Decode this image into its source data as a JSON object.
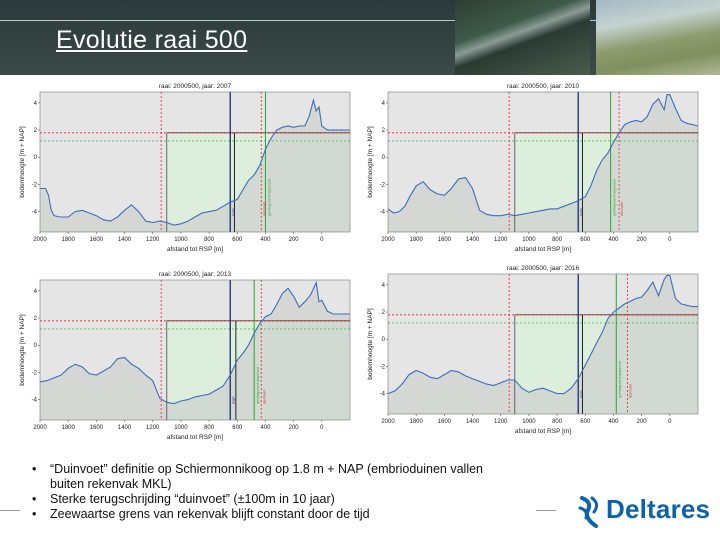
{
  "slide": {
    "title": "Evolutie raai 500",
    "bullets": [
      "“Duinvoet” definitie op Schiermonnikoog op 1.8 m + NAP (embrioduinen vallen buiten rekenvak MKL)",
      "Sterke terugschrijding “duinvoet” (±100m in 10 jaar)",
      "Zeewaartse grens van rekenvak blijft constant door de tijd"
    ],
    "logo_text": "Deltares"
  },
  "colors": {
    "profile": "#3a6fb8",
    "nap_line": "#e0232a",
    "dune_foot_line": "#7b2b2b",
    "green_band": "#2aa535",
    "navy": "#1b2a7a",
    "panel_gray": "#e5e5e5",
    "zone_green": "#dbeedb",
    "logo_blue": "#0c63a9"
  },
  "chart_data": [
    {
      "type": "area",
      "title": "raai: 2000500, jaar: 2007",
      "xlabel": "afstand tot RSP [m]",
      "ylabel": "bodemhoogte [m + NAP]",
      "xlim": [
        2000,
        -200
      ],
      "ylim": [
        -5.5,
        4.8
      ],
      "x_ticks": [
        2000,
        1800,
        1600,
        1400,
        1200,
        1000,
        800,
        600,
        400,
        200,
        0
      ],
      "y_ticks": [
        -4,
        -2,
        0,
        2,
        4
      ],
      "hlines": [
        1.8,
        1.2,
        0.9
      ],
      "rekenvak": [
        1100,
        -200
      ],
      "vlines": {
        "red": [
          1140,
          430
        ],
        "navy": [
          650
        ],
        "dark": [
          620
        ],
        "green": [
          400
        ]
      },
      "vline_labels": [
        "RSP",
        "geïntegreerd begrensd",
        "duinvoet"
      ],
      "profile": {
        "x": [
          2000,
          1960,
          1940,
          1920,
          1900,
          1860,
          1800,
          1750,
          1700,
          1650,
          1600,
          1550,
          1500,
          1450,
          1400,
          1350,
          1300,
          1250,
          1200,
          1150,
          1100,
          1050,
          1000,
          950,
          900,
          850,
          800,
          750,
          700,
          650,
          600,
          560,
          520,
          480,
          440,
          400,
          360,
          320,
          280,
          240,
          200,
          160,
          120,
          90,
          60,
          40,
          20,
          0,
          -40,
          -80,
          -120,
          -160,
          -200
        ],
        "y": [
          -2.3,
          -2.3,
          -2.8,
          -3.9,
          -4.3,
          -4.4,
          -4.4,
          -4.0,
          -3.9,
          -4.1,
          -4.3,
          -4.6,
          -4.7,
          -4.4,
          -3.9,
          -3.5,
          -4.0,
          -4.7,
          -4.8,
          -4.7,
          -4.8,
          -5.0,
          -4.9,
          -4.7,
          -4.4,
          -4.1,
          -4.0,
          -3.9,
          -3.6,
          -3.3,
          -3.1,
          -2.4,
          -1.7,
          -1.3,
          -0.6,
          0.6,
          1.4,
          2.0,
          2.2,
          2.3,
          2.2,
          2.3,
          2.3,
          3.0,
          4.2,
          3.4,
          3.7,
          2.3,
          2.0,
          2.0,
          2.0,
          2.0,
          2.0
        ]
      }
    },
    {
      "type": "area",
      "title": "raai: 2000500, jaar: 2010",
      "xlabel": "afstand tot RSP [m]",
      "ylabel": "bodemhoogte [m + NAP]",
      "xlim": [
        2000,
        -200
      ],
      "ylim": [
        -5.5,
        4.8
      ],
      "x_ticks": [
        2000,
        1800,
        1600,
        1400,
        1200,
        1000,
        800,
        600,
        400,
        200,
        0
      ],
      "y_ticks": [
        -4,
        -2,
        0,
        2,
        4
      ],
      "hlines": [
        1.8,
        1.2,
        0.9
      ],
      "rekenvak": [
        1100,
        -200
      ],
      "vlines": {
        "red": [
          1140,
          360
        ],
        "navy": [
          650
        ],
        "dark": [
          620
        ],
        "green": [
          420
        ]
      },
      "vline_labels": [
        "RSP",
        "geïntegreerd begrensd",
        "duinvoet"
      ],
      "profile": {
        "x": [
          2000,
          1960,
          1920,
          1880,
          1840,
          1800,
          1750,
          1700,
          1650,
          1600,
          1550,
          1500,
          1450,
          1400,
          1350,
          1300,
          1250,
          1200,
          1150,
          1100,
          1050,
          1000,
          950,
          900,
          850,
          800,
          750,
          700,
          650,
          600,
          560,
          520,
          480,
          440,
          400,
          360,
          320,
          280,
          240,
          200,
          160,
          120,
          80,
          40,
          20,
          0,
          -40,
          -80,
          -120,
          -160,
          -200
        ],
        "y": [
          -3.8,
          -4.1,
          -4.0,
          -3.6,
          -2.8,
          -2.1,
          -1.8,
          -2.4,
          -2.7,
          -2.8,
          -2.3,
          -1.6,
          -1.5,
          -2.3,
          -3.9,
          -4.2,
          -4.3,
          -4.3,
          -4.2,
          -4.3,
          -4.2,
          -4.1,
          -4.0,
          -3.9,
          -3.8,
          -3.8,
          -3.6,
          -3.4,
          -3.2,
          -2.9,
          -2.1,
          -1.0,
          -0.2,
          0.3,
          1.1,
          1.8,
          2.4,
          2.6,
          2.7,
          2.6,
          3.0,
          3.9,
          4.3,
          3.5,
          4.6,
          4.6,
          3.6,
          2.7,
          2.5,
          2.4,
          2.3
        ]
      }
    },
    {
      "type": "area",
      "title": "raai: 2000500, jaar: 2013",
      "xlabel": "afstand tot RSP [m]",
      "ylabel": "bodemhoogte [m + NAP]",
      "xlim": [
        2000,
        -200
      ],
      "ylim": [
        -5.5,
        4.8
      ],
      "x_ticks": [
        2000,
        1800,
        1600,
        1400,
        1200,
        1000,
        800,
        600,
        400,
        200,
        0
      ],
      "y_ticks": [
        -4,
        -2,
        0,
        2,
        4
      ],
      "hlines": [
        1.8,
        1.2,
        0.9
      ],
      "rekenvak": [
        1100,
        -200
      ],
      "vlines": {
        "red": [
          1140,
          430
        ],
        "navy": [
          650
        ],
        "dark": [
          610
        ],
        "green": [
          480
        ]
      },
      "vline_labels": [
        "RSP",
        "geïntegreerd begrensd",
        "duinvoet"
      ],
      "profile": {
        "x": [
          2000,
          1950,
          1900,
          1850,
          1800,
          1750,
          1700,
          1650,
          1600,
          1550,
          1500,
          1450,
          1400,
          1350,
          1300,
          1250,
          1200,
          1150,
          1100,
          1050,
          1000,
          950,
          900,
          850,
          800,
          750,
          700,
          650,
          600,
          560,
          520,
          480,
          440,
          400,
          360,
          320,
          280,
          240,
          200,
          160,
          120,
          80,
          40,
          20,
          0,
          -40,
          -80,
          -120,
          -160,
          -200
        ],
        "y": [
          -2.7,
          -2.6,
          -2.4,
          -2.2,
          -1.7,
          -1.4,
          -1.6,
          -2.1,
          -2.2,
          -1.9,
          -1.6,
          -1.0,
          -0.9,
          -1.4,
          -1.7,
          -2.2,
          -2.6,
          -3.9,
          -4.2,
          -4.3,
          -4.1,
          -4.0,
          -3.8,
          -3.7,
          -3.6,
          -3.3,
          -3.0,
          -2.2,
          -1.1,
          -0.6,
          0.0,
          0.9,
          1.6,
          2.1,
          2.3,
          3.0,
          3.8,
          4.2,
          3.6,
          2.8,
          3.2,
          3.7,
          4.6,
          3.2,
          3.3,
          2.5,
          2.3,
          2.3,
          2.3,
          2.3
        ]
      }
    },
    {
      "type": "area",
      "title": "raai: 2000500, jaar: 2016",
      "xlabel": "afstand tot RSP [m]",
      "ylabel": "bodemhoogte [m + NAP]",
      "xlim": [
        2000,
        -200
      ],
      "ylim": [
        -5.5,
        4.8
      ],
      "x_ticks": [
        2000,
        1800,
        1600,
        1400,
        1200,
        1000,
        800,
        600,
        400,
        200,
        0
      ],
      "y_ticks": [
        -4,
        -2,
        0,
        2,
        4
      ],
      "hlines": [
        1.8,
        1.2,
        0.9
      ],
      "rekenvak": [
        1100,
        -200
      ],
      "vlines": {
        "red": [
          1140,
          300
        ],
        "navy": [
          650
        ],
        "dark": [
          620
        ],
        "green": [
          380
        ]
      },
      "vline_labels": [
        "RSP",
        "geïntegreerd begrensd",
        "duinvoet"
      ],
      "profile": {
        "x": [
          2000,
          1950,
          1900,
          1850,
          1800,
          1750,
          1700,
          1650,
          1600,
          1550,
          1500,
          1450,
          1400,
          1350,
          1300,
          1250,
          1200,
          1150,
          1100,
          1050,
          1000,
          950,
          900,
          850,
          800,
          750,
          700,
          650,
          600,
          560,
          520,
          480,
          440,
          400,
          360,
          320,
          280,
          240,
          200,
          160,
          120,
          80,
          40,
          20,
          0,
          -40,
          -80,
          -120,
          -160,
          -200
        ],
        "y": [
          -4.0,
          -3.8,
          -3.3,
          -2.6,
          -2.3,
          -2.5,
          -2.8,
          -2.9,
          -2.6,
          -2.3,
          -2.4,
          -2.7,
          -2.9,
          -3.1,
          -3.3,
          -3.4,
          -3.2,
          -3.0,
          -3.0,
          -3.6,
          -3.9,
          -3.7,
          -3.6,
          -3.8,
          -4.0,
          -4.0,
          -3.6,
          -2.9,
          -1.9,
          -1.1,
          -0.3,
          0.5,
          1.5,
          2.0,
          2.3,
          2.6,
          2.8,
          3.0,
          3.1,
          3.6,
          4.2,
          3.2,
          4.4,
          4.7,
          4.7,
          3.0,
          2.6,
          2.5,
          2.4,
          2.4
        ]
      }
    }
  ]
}
